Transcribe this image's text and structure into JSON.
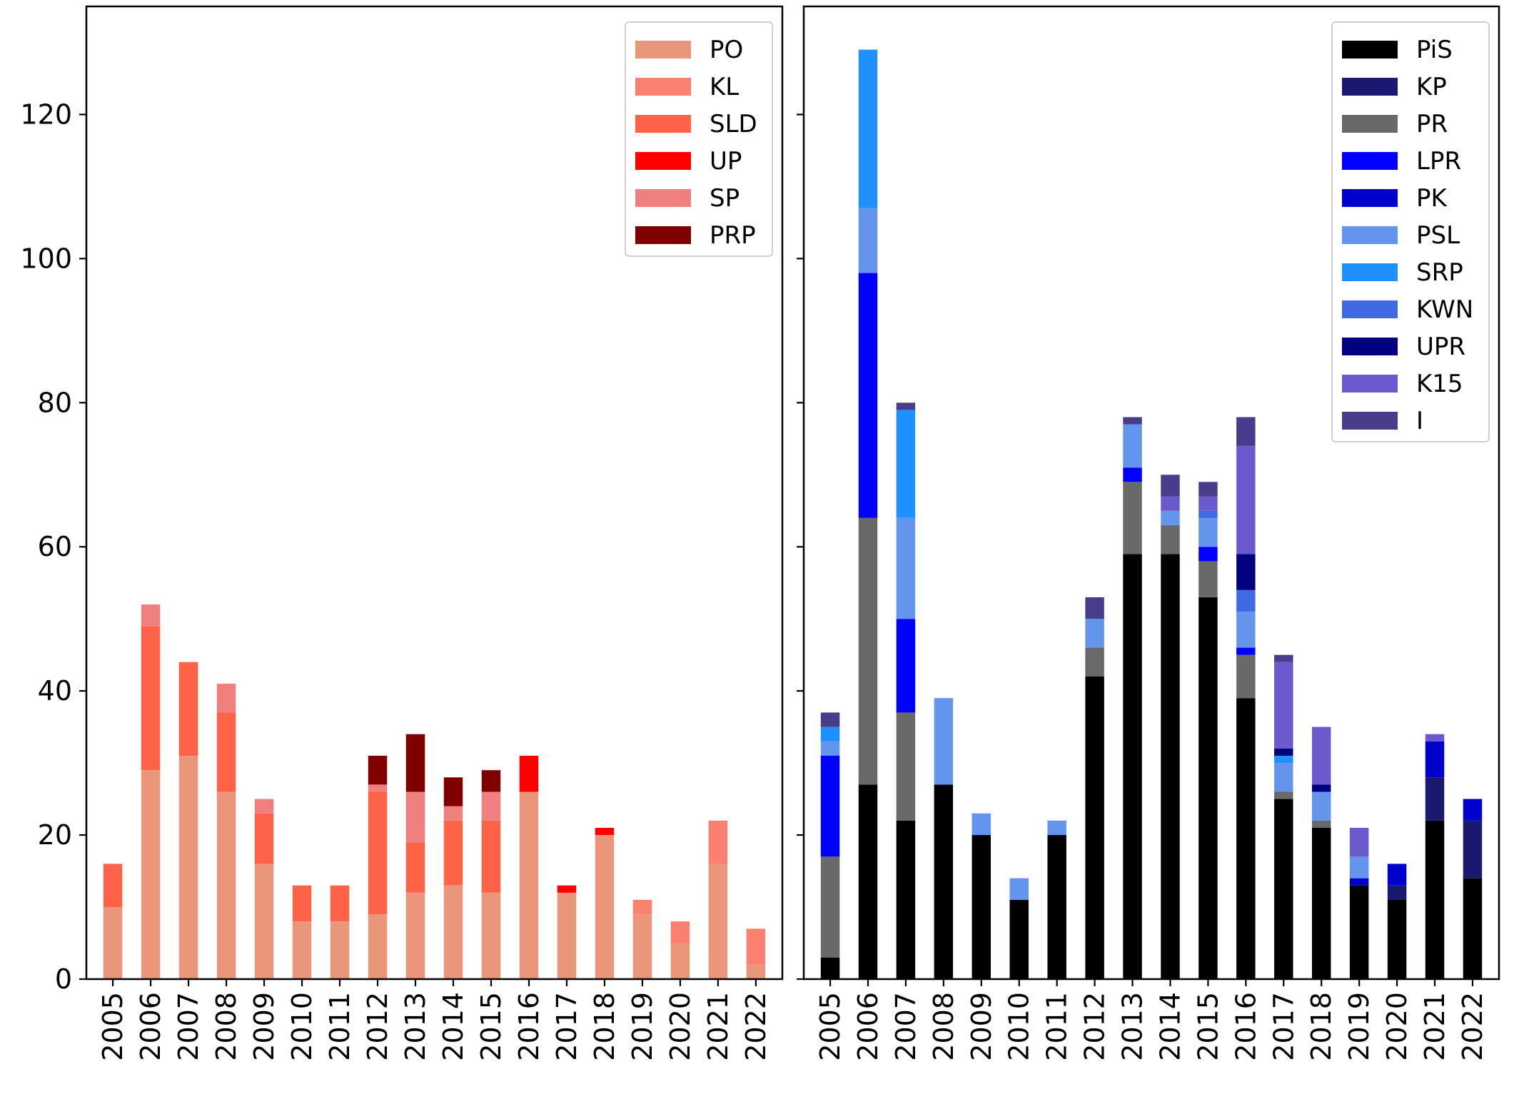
{
  "chart_data": [
    {
      "type": "bar",
      "stacked": true,
      "categories": [
        "2005",
        "2006",
        "2007",
        "2008",
        "2009",
        "2010",
        "2011",
        "2012",
        "2013",
        "2014",
        "2015",
        "2016",
        "2017",
        "2018",
        "2019",
        "2020",
        "2021",
        "2022"
      ],
      "ylim": [
        0,
        135
      ],
      "yticks": [
        0,
        20,
        40,
        60,
        80,
        100,
        120
      ],
      "show_ytick_labels": true,
      "legend_position": "top-right",
      "grid": false,
      "series": [
        {
          "name": "PO",
          "color": "#e9967a",
          "values": [
            10,
            29,
            31,
            26,
            16,
            8,
            8,
            9,
            12,
            13,
            12,
            26,
            12,
            20,
            9,
            5,
            16,
            2
          ]
        },
        {
          "name": "KL",
          "color": "#fa8072",
          "values": [
            0,
            0,
            0,
            0,
            0,
            0,
            0,
            0,
            0,
            0,
            0,
            0,
            0,
            0,
            2,
            3,
            6,
            5
          ]
        },
        {
          "name": "SLD",
          "color": "#ff6347",
          "values": [
            6,
            20,
            13,
            11,
            7,
            5,
            5,
            17,
            7,
            9,
            10,
            0,
            0,
            0,
            0,
            0,
            0,
            0
          ]
        },
        {
          "name": "UP",
          "color": "#ff0000",
          "values": [
            0,
            0,
            0,
            0,
            0,
            0,
            0,
            0,
            0,
            0,
            0,
            5,
            1,
            1,
            0,
            0,
            0,
            0
          ]
        },
        {
          "name": "SP",
          "color": "#f08080",
          "values": [
            0,
            3,
            0,
            4,
            2,
            0,
            0,
            1,
            7,
            2,
            4,
            0,
            0,
            0,
            0,
            0,
            0,
            0
          ]
        },
        {
          "name": "PRP",
          "color": "#800000",
          "values": [
            0,
            0,
            0,
            0,
            0,
            0,
            0,
            4,
            8,
            4,
            3,
            0,
            0,
            0,
            0,
            0,
            0,
            0
          ]
        }
      ]
    },
    {
      "type": "bar",
      "stacked": true,
      "categories": [
        "2005",
        "2006",
        "2007",
        "2008",
        "2009",
        "2010",
        "2011",
        "2012",
        "2013",
        "2014",
        "2015",
        "2016",
        "2017",
        "2018",
        "2019",
        "2020",
        "2021",
        "2022"
      ],
      "ylim": [
        0,
        135
      ],
      "yticks": [
        0,
        20,
        40,
        60,
        80,
        100,
        120
      ],
      "show_ytick_labels": false,
      "legend_position": "top-right",
      "grid": false,
      "series": [
        {
          "name": "PiS",
          "color": "#000000",
          "values": [
            3,
            27,
            22,
            27,
            20,
            11,
            20,
            42,
            59,
            59,
            53,
            39,
            25,
            21,
            13,
            11,
            22,
            14
          ]
        },
        {
          "name": "KP",
          "color": "#191970",
          "values": [
            0,
            0,
            0,
            0,
            0,
            0,
            0,
            0,
            0,
            0,
            0,
            0,
            0,
            0,
            0,
            2,
            6,
            8
          ]
        },
        {
          "name": "PR",
          "color": "#696969",
          "values": [
            14,
            37,
            15,
            0,
            0,
            0,
            0,
            4,
            10,
            4,
            5,
            6,
            1,
            1,
            0,
            0,
            0,
            0
          ]
        },
        {
          "name": "LPR",
          "color": "#0000ff",
          "values": [
            14,
            34,
            13,
            0,
            0,
            0,
            0,
            0,
            2,
            0,
            2,
            1,
            0,
            0,
            0,
            0,
            0,
            0
          ]
        },
        {
          "name": "PK",
          "color": "#0000cd",
          "values": [
            0,
            0,
            0,
            0,
            0,
            0,
            0,
            0,
            0,
            0,
            0,
            0,
            0,
            0,
            1,
            3,
            5,
            3
          ]
        },
        {
          "name": "PSL",
          "color": "#6495ed",
          "values": [
            2,
            9,
            14,
            12,
            3,
            3,
            2,
            4,
            6,
            2,
            4,
            5,
            4,
            4,
            3,
            0,
            0,
            0
          ]
        },
        {
          "name": "SRP",
          "color": "#1e90ff",
          "values": [
            2,
            22,
            15,
            0,
            0,
            0,
            0,
            0,
            0,
            0,
            0,
            0,
            1,
            0,
            0,
            0,
            0,
            0
          ]
        },
        {
          "name": "KWN",
          "color": "#4169e1",
          "values": [
            0,
            0,
            0,
            0,
            0,
            0,
            0,
            0,
            0,
            0,
            1,
            3,
            0,
            0,
            0,
            0,
            0,
            0
          ]
        },
        {
          "name": "UPR",
          "color": "#000080",
          "values": [
            0,
            0,
            0,
            0,
            0,
            0,
            0,
            0,
            0,
            0,
            0,
            5,
            1,
            1,
            0,
            0,
            0,
            0
          ]
        },
        {
          "name": "K15",
          "color": "#6a5acd",
          "values": [
            0,
            0,
            0,
            0,
            0,
            0,
            0,
            0,
            0,
            2,
            2,
            15,
            12,
            8,
            4,
            0,
            1,
            0
          ]
        },
        {
          "name": "I",
          "color": "#483d8b",
          "values": [
            2,
            0,
            1,
            0,
            0,
            0,
            0,
            3,
            1,
            3,
            2,
            4,
            1,
            0,
            0,
            0,
            0,
            0
          ]
        }
      ]
    }
  ]
}
